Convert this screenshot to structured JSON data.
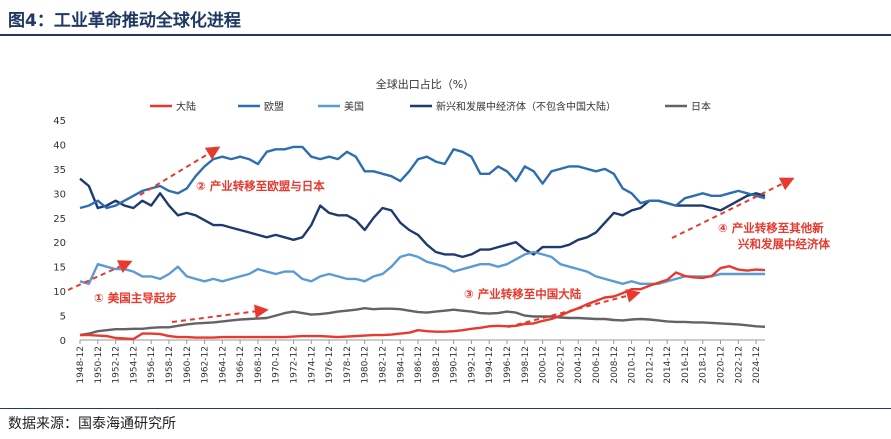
{
  "figure_title": "图4：工业革命推动全球化进程",
  "source": "数据来源：国泰海通研究所",
  "chart_data": {
    "type": "line",
    "title": "全球出口占比（%）",
    "ylim": [
      0,
      45
    ],
    "yticks": [
      0,
      5,
      10,
      15,
      20,
      25,
      30,
      35,
      40,
      45
    ],
    "xlim": [
      1948,
      2025
    ],
    "xticks": [
      "1948-12",
      "1950-12",
      "1952-12",
      "1954-12",
      "1956-12",
      "1958-12",
      "1960-12",
      "1962-12",
      "1964-12",
      "1966-12",
      "1968-12",
      "1970-12",
      "1972-12",
      "1974-12",
      "1976-12",
      "1978-12",
      "1980-12",
      "1982-12",
      "1984-12",
      "1986-12",
      "1988-12",
      "1990-12",
      "1992-12",
      "1994-12",
      "1996-12",
      "1998-12",
      "2000-12",
      "2002-12",
      "2004-12",
      "2006-12",
      "2008-12",
      "2010-12",
      "2012-12",
      "2014-12",
      "2016-12",
      "2018-12",
      "2020-12",
      "2022-12",
      "2024-12"
    ],
    "grid": false,
    "legend_position": "top",
    "x": [
      1948,
      1949,
      1950,
      1951,
      1952,
      1953,
      1954,
      1955,
      1956,
      1957,
      1958,
      1959,
      1960,
      1961,
      1962,
      1963,
      1964,
      1965,
      1966,
      1967,
      1968,
      1969,
      1970,
      1971,
      1972,
      1973,
      1974,
      1975,
      1976,
      1977,
      1978,
      1979,
      1980,
      1981,
      1982,
      1983,
      1984,
      1985,
      1986,
      1987,
      1988,
      1989,
      1990,
      1991,
      1992,
      1993,
      1994,
      1995,
      1996,
      1997,
      1998,
      1999,
      2000,
      2001,
      2002,
      2003,
      2004,
      2005,
      2006,
      2007,
      2008,
      2009,
      2010,
      2011,
      2012,
      2013,
      2014,
      2015,
      2016,
      2017,
      2018,
      2019,
      2020,
      2021,
      2022,
      2023,
      2024,
      2025
    ],
    "series": [
      {
        "name": "大陆",
        "color": "#e8392e",
        "values": [
          1.0,
          1.0,
          0.9,
          0.8,
          0.4,
          0.3,
          0.2,
          1.3,
          1.3,
          1.2,
          0.8,
          0.6,
          0.6,
          0.5,
          0.5,
          0.5,
          0.6,
          0.6,
          0.6,
          0.6,
          0.6,
          0.6,
          0.6,
          0.6,
          0.7,
          0.8,
          0.8,
          0.8,
          0.7,
          0.6,
          0.7,
          0.8,
          0.9,
          1.0,
          1.0,
          1.1,
          1.3,
          1.5,
          2.0,
          1.8,
          1.7,
          1.7,
          1.8,
          2.0,
          2.3,
          2.5,
          2.8,
          2.9,
          2.8,
          2.9,
          3.3,
          3.4,
          3.9,
          4.3,
          5.0,
          5.8,
          6.5,
          7.3,
          8.0,
          8.7,
          8.9,
          9.6,
          10.4,
          10.4,
          11.1,
          11.7,
          12.3,
          13.8,
          13.1,
          12.8,
          12.7,
          13.1,
          14.7,
          15.1,
          14.4,
          14.2,
          14.4,
          14.3
        ]
      },
      {
        "name": "欧盟",
        "color": "#2e6db0",
        "values": [
          27.0,
          27.5,
          28.5,
          27.0,
          27.5,
          28.5,
          29.5,
          30.5,
          31.0,
          31.5,
          30.5,
          30.0,
          31.0,
          33.5,
          35.5,
          37.0,
          37.5,
          37.0,
          37.5,
          37.0,
          36.0,
          38.5,
          39.0,
          39.0,
          39.5,
          39.5,
          37.5,
          37.0,
          37.5,
          37.0,
          38.5,
          37.5,
          34.5,
          34.5,
          34.0,
          33.5,
          32.5,
          34.5,
          37.0,
          37.5,
          36.5,
          36.0,
          39.0,
          38.5,
          37.5,
          34.0,
          34.0,
          35.5,
          34.5,
          32.5,
          35.5,
          34.5,
          32.0,
          34.5,
          35.0,
          35.5,
          35.5,
          35.0,
          34.5,
          35.0,
          34.0,
          31.0,
          30.0,
          28.0,
          28.5,
          28.5,
          28.0,
          27.5,
          29.0,
          29.5,
          30.0,
          29.5,
          29.5,
          30.0,
          30.5,
          30.0,
          29.5,
          29.0
        ]
      },
      {
        "name": "美国",
        "color": "#5b9bd5",
        "values": [
          12.0,
          11.5,
          15.5,
          15.0,
          14.5,
          14.5,
          14.0,
          13.0,
          13.0,
          12.5,
          13.5,
          15.0,
          13.0,
          12.5,
          12.0,
          12.5,
          12.0,
          12.5,
          13.0,
          13.5,
          14.5,
          14.0,
          13.5,
          14.0,
          14.0,
          12.5,
          12.0,
          13.0,
          13.5,
          13.0,
          12.5,
          12.5,
          12.0,
          13.0,
          13.5,
          15.0,
          17.0,
          17.5,
          17.0,
          16.0,
          15.5,
          15.0,
          14.0,
          14.5,
          15.0,
          15.5,
          15.5,
          15.0,
          15.5,
          16.5,
          17.5,
          18.0,
          17.5,
          17.0,
          15.5,
          15.0,
          14.5,
          14.0,
          13.0,
          12.5,
          12.0,
          11.5,
          12.0,
          11.5,
          11.5,
          11.5,
          12.0,
          12.5,
          13.0,
          13.0,
          13.0,
          13.0,
          13.5,
          13.5,
          13.5,
          13.5,
          13.5,
          13.5
        ]
      },
      {
        "name": "新兴和发展中经济体（不包含中国大陆）",
        "color": "#1f3a6e",
        "values": [
          33.0,
          31.5,
          27.0,
          27.5,
          28.5,
          27.5,
          27.0,
          28.5,
          27.5,
          30.0,
          27.5,
          25.5,
          26.0,
          25.5,
          24.5,
          23.5,
          23.5,
          23.0,
          22.5,
          22.0,
          21.5,
          21.0,
          21.5,
          21.0,
          20.5,
          21.0,
          23.5,
          27.5,
          26.0,
          25.5,
          25.5,
          24.5,
          22.5,
          25.0,
          27.0,
          26.5,
          24.0,
          22.5,
          21.5,
          19.5,
          18.0,
          17.5,
          17.5,
          17.0,
          17.5,
          18.5,
          18.5,
          19.0,
          19.5,
          20.0,
          18.5,
          17.5,
          19.0,
          19.0,
          19.0,
          19.5,
          20.5,
          21.0,
          22.0,
          24.0,
          26.0,
          25.5,
          26.5,
          27.0,
          28.5,
          28.5,
          28.0,
          27.5,
          27.5,
          27.5,
          27.5,
          27.0,
          26.5,
          27.5,
          28.5,
          29.5,
          30.0,
          29.5
        ]
      },
      {
        "name": "日本",
        "color": "#636363",
        "values": [
          1.0,
          1.3,
          1.8,
          2.0,
          2.2,
          2.2,
          2.3,
          2.3,
          2.5,
          2.6,
          2.6,
          2.9,
          3.2,
          3.4,
          3.5,
          3.6,
          3.8,
          4.0,
          4.2,
          4.3,
          4.4,
          4.5,
          5.0,
          5.5,
          5.8,
          5.5,
          5.2,
          5.3,
          5.5,
          5.8,
          6.0,
          6.2,
          6.5,
          6.3,
          6.4,
          6.4,
          6.3,
          6.0,
          5.7,
          5.6,
          5.8,
          6.0,
          6.2,
          6.0,
          5.8,
          5.5,
          5.4,
          5.5,
          5.8,
          5.6,
          5.0,
          4.8,
          4.8,
          4.8,
          4.6,
          4.5,
          4.5,
          4.4,
          4.3,
          4.3,
          4.1,
          4.0,
          4.2,
          4.3,
          4.2,
          4.0,
          3.8,
          3.7,
          3.7,
          3.6,
          3.6,
          3.5,
          3.4,
          3.3,
          3.2,
          3.0,
          2.8,
          2.7
        ]
      }
    ],
    "annotations": [
      {
        "text": "① 美国主导起步",
        "color": "#e8392e"
      },
      {
        "text": "② 产业转移至欧盟与日本",
        "color": "#e8392e"
      },
      {
        "text": "③ 产业转移至中国大陆",
        "color": "#e8392e"
      },
      {
        "text": "④ 产业转移至其他新",
        "color": "#e8392e"
      },
      {
        "text": "兴和发展中经济体",
        "color": "#e8392e"
      }
    ]
  }
}
